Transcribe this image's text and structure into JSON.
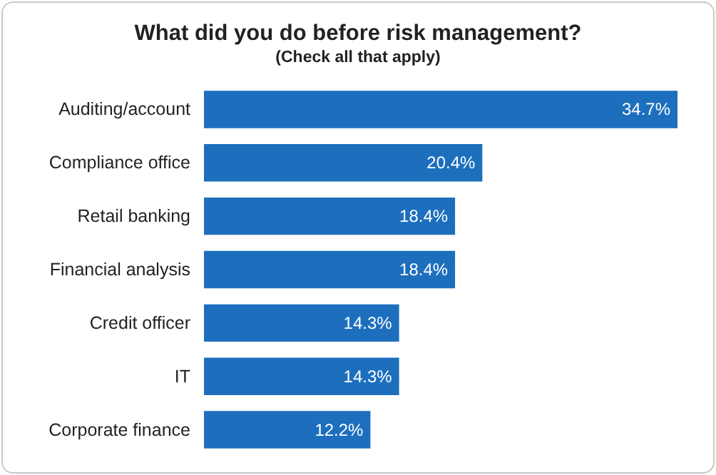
{
  "chart_data": {
    "type": "bar",
    "orientation": "horizontal",
    "title": "What did you do before risk management?",
    "subtitle": "(Check all that apply)",
    "categories": [
      "Auditing/account",
      "Compliance office",
      "Retail banking",
      "Financial analysis",
      "Credit officer",
      "IT",
      "Corporate finance"
    ],
    "values": [
      34.7,
      20.4,
      18.4,
      18.4,
      14.3,
      14.3,
      12.2
    ],
    "value_labels": [
      "34.7%",
      "20.4%",
      "18.4%",
      "18.4%",
      "14.3%",
      "14.3%",
      "12.2%"
    ],
    "color": "#1d6fbe"
  }
}
